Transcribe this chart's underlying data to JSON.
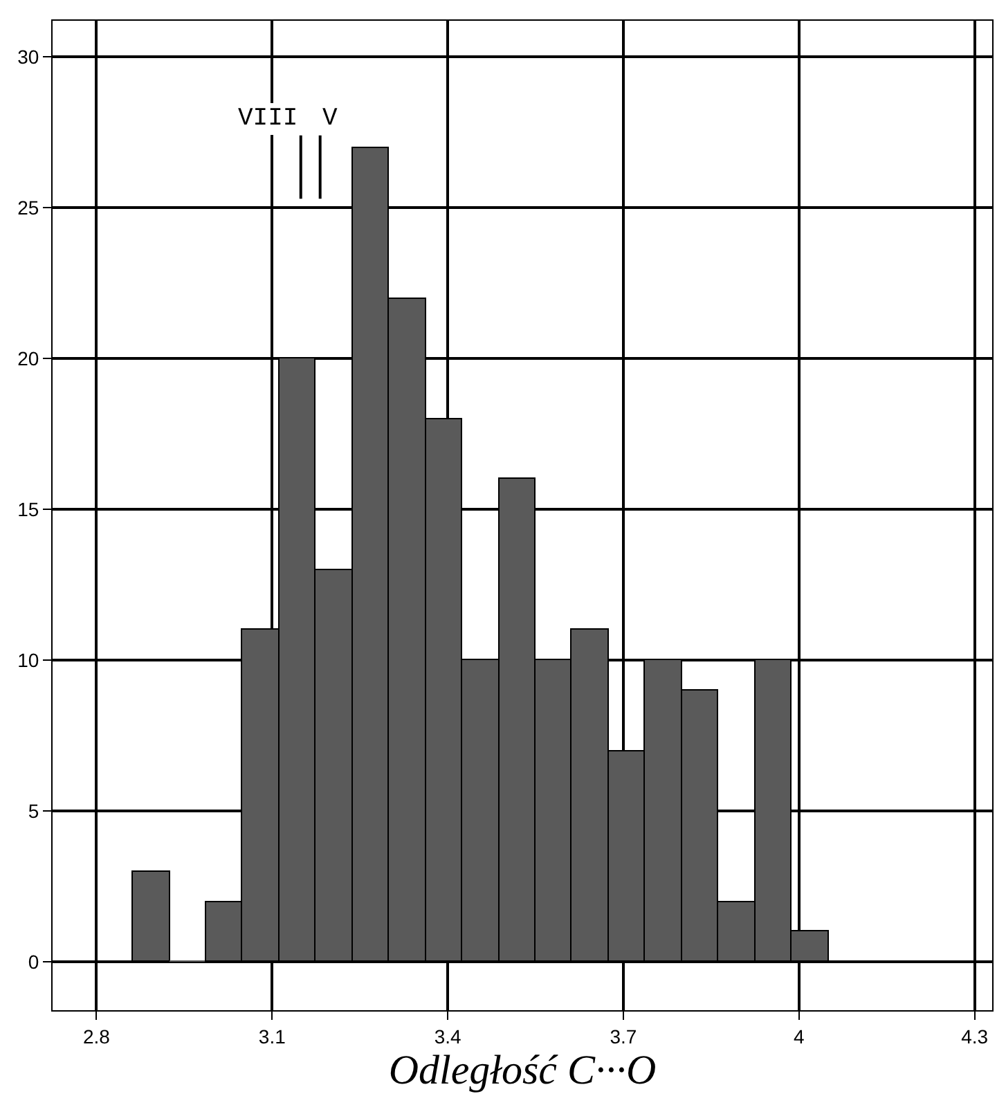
{
  "chart_data": {
    "type": "histogram",
    "xlabel": "Odległość C···O",
    "bins": [
      2.8625,
      2.925,
      2.9875,
      3.05,
      3.1125,
      3.175,
      3.2375,
      3.3,
      3.3625,
      3.425,
      3.4875,
      3.55,
      3.6125,
      3.675,
      3.7375,
      3.8,
      3.8625,
      3.925,
      3.9875,
      4.05
    ],
    "values": [
      3,
      0,
      2,
      11,
      20,
      13,
      27,
      22,
      18,
      10,
      16,
      10,
      11,
      7,
      10,
      9,
      2,
      10,
      1
    ],
    "color": "#5a5a5a",
    "xlim": [
      2.725,
      4.33
    ],
    "xticks": [
      2.8,
      3.1,
      3.4,
      3.7,
      4,
      4.3
    ],
    "ylim": [
      -1.6,
      31.2
    ],
    "yticks": [
      0,
      5,
      10,
      15,
      20,
      25,
      30
    ],
    "grid": true,
    "ref_lines": [
      {
        "axis": "x",
        "value": 3.149,
        "label": "VIII"
      },
      {
        "axis": "x",
        "value": 3.182,
        "label": "V"
      }
    ]
  }
}
